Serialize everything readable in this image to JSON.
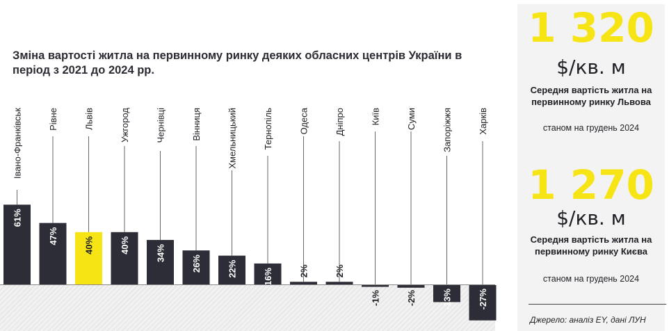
{
  "chart_data": {
    "type": "bar",
    "title": "Зміна вартості житла на первинному ринку деяких обласних центрів України в період з 2021 до 2024 рр.",
    "categories": [
      "Івано-Франківськ",
      "Рівне",
      "Львів",
      "Ужгород",
      "Чернівці",
      "Вінниця",
      "Хмельницький",
      "Тернопіль",
      "Одеса",
      "Дніпро",
      "Київ",
      "Суми",
      "Запоріжжя",
      "Харків"
    ],
    "values": [
      61,
      47,
      40,
      40,
      34,
      26,
      22,
      16,
      2,
      2,
      -1,
      -2,
      -13,
      -27
    ],
    "value_labels": [
      "61%",
      "47%",
      "40%",
      "40%",
      "34%",
      "26%",
      "22%",
      "16%",
      "2%",
      "2%",
      "-1%",
      "-2%",
      "-13%",
      "-27%"
    ],
    "highlight": "Львів",
    "colors": {
      "bar": "#2d2d38",
      "highlight": "#f7e414"
    }
  },
  "stats": [
    {
      "value": "1 320",
      "unit": "$/кв. м",
      "desc": "Середня вартість житла на первинному ринку Львова",
      "date": "станом на грудень 2024"
    },
    {
      "value": "1 270",
      "unit": "$/кв. м",
      "desc": "Середня вартість житла на первинному ринку Києва",
      "date": "станом на грудень 2024"
    }
  ],
  "source": "Джерело: аналіз EY, дані ЛУН"
}
